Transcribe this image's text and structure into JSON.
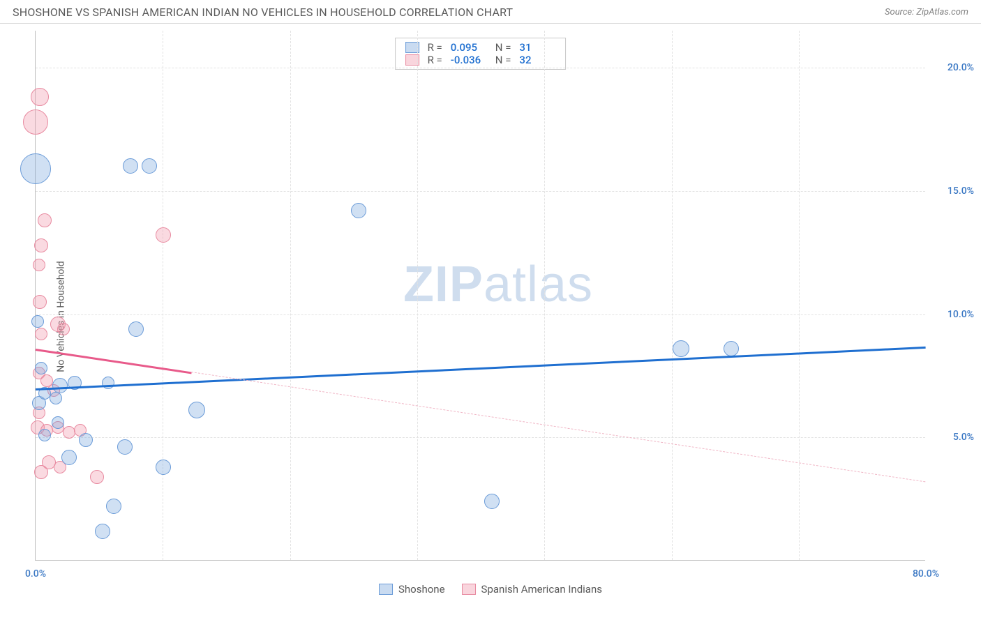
{
  "header": {
    "title": "SHOSHONE VS SPANISH AMERICAN INDIAN NO VEHICLES IN HOUSEHOLD CORRELATION CHART",
    "source": "Source: ZipAtlas.com"
  },
  "ylabel": "No Vehicles in Household",
  "watermark": {
    "bold": "ZIP",
    "rest": "atlas"
  },
  "axes": {
    "xlim": [
      0,
      80
    ],
    "ylim": [
      0,
      21.5
    ],
    "yTicks": [
      {
        "v": 5,
        "label": "5.0%"
      },
      {
        "v": 10,
        "label": "10.0%"
      },
      {
        "v": 15,
        "label": "15.0%"
      },
      {
        "v": 20,
        "label": "20.0%"
      }
    ],
    "xTicks": [
      {
        "v": 0,
        "label": "0.0%"
      },
      {
        "v": 80,
        "label": "80.0%"
      }
    ],
    "xGridStep": 11.43,
    "ytick_color": "#3b78c4",
    "xtick_color": "#3b78c4"
  },
  "series": {
    "blue": {
      "name": "Shoshone",
      "color_fill": "rgba(120,165,220,0.35)",
      "color_stroke": "#6a9bd8",
      "R": "0.095",
      "N": "31",
      "trend": {
        "x1": 0,
        "y1": 7.0,
        "x2": 80,
        "y2": 8.7,
        "solid_until_x": 80
      },
      "points": [
        {
          "x": 0.0,
          "y": 15.9,
          "r": 22
        },
        {
          "x": 8.5,
          "y": 16.0,
          "r": 11
        },
        {
          "x": 10.2,
          "y": 16.0,
          "r": 11
        },
        {
          "x": 29.0,
          "y": 14.2,
          "r": 11
        },
        {
          "x": 58.0,
          "y": 8.6,
          "r": 12
        },
        {
          "x": 62.5,
          "y": 8.6,
          "r": 11
        },
        {
          "x": 41.0,
          "y": 2.4,
          "r": 11
        },
        {
          "x": 14.5,
          "y": 6.1,
          "r": 12
        },
        {
          "x": 9.0,
          "y": 9.4,
          "r": 11
        },
        {
          "x": 11.5,
          "y": 3.8,
          "r": 11
        },
        {
          "x": 7.0,
          "y": 2.2,
          "r": 11
        },
        {
          "x": 8.0,
          "y": 4.6,
          "r": 11
        },
        {
          "x": 6.0,
          "y": 1.2,
          "r": 11
        },
        {
          "x": 3.0,
          "y": 4.2,
          "r": 11
        },
        {
          "x": 4.5,
          "y": 4.9,
          "r": 10
        },
        {
          "x": 2.2,
          "y": 7.1,
          "r": 11
        },
        {
          "x": 3.5,
          "y": 7.2,
          "r": 10
        },
        {
          "x": 0.3,
          "y": 6.4,
          "r": 10
        },
        {
          "x": 1.8,
          "y": 6.6,
          "r": 9
        },
        {
          "x": 0.8,
          "y": 6.8,
          "r": 9
        },
        {
          "x": 2.0,
          "y": 5.6,
          "r": 9
        },
        {
          "x": 0.8,
          "y": 5.1,
          "r": 9
        },
        {
          "x": 0.5,
          "y": 7.8,
          "r": 9
        },
        {
          "x": 0.2,
          "y": 9.7,
          "r": 9
        },
        {
          "x": 6.5,
          "y": 7.2,
          "r": 9
        }
      ]
    },
    "pink": {
      "name": "Spanish American Indians",
      "color_fill": "rgba(240,150,170,0.35)",
      "color_stroke": "#e88aa0",
      "R": "-0.036",
      "N": "32",
      "trend": {
        "x1": 0,
        "y1": 8.6,
        "x2": 80,
        "y2": 3.2,
        "solid_until_x": 14
      },
      "points": [
        {
          "x": 0.4,
          "y": 18.8,
          "r": 13
        },
        {
          "x": 0.0,
          "y": 17.8,
          "r": 18
        },
        {
          "x": 11.5,
          "y": 13.2,
          "r": 11
        },
        {
          "x": 0.8,
          "y": 13.8,
          "r": 10
        },
        {
          "x": 0.5,
          "y": 12.8,
          "r": 10
        },
        {
          "x": 0.3,
          "y": 12.0,
          "r": 9
        },
        {
          "x": 0.4,
          "y": 10.5,
          "r": 10
        },
        {
          "x": 2.0,
          "y": 9.6,
          "r": 11
        },
        {
          "x": 0.5,
          "y": 9.2,
          "r": 9
        },
        {
          "x": 2.5,
          "y": 9.4,
          "r": 9
        },
        {
          "x": 0.3,
          "y": 7.6,
          "r": 9
        },
        {
          "x": 1.0,
          "y": 7.3,
          "r": 9
        },
        {
          "x": 1.6,
          "y": 6.9,
          "r": 9
        },
        {
          "x": 0.3,
          "y": 6.0,
          "r": 9
        },
        {
          "x": 0.2,
          "y": 5.4,
          "r": 10
        },
        {
          "x": 1.0,
          "y": 5.3,
          "r": 9
        },
        {
          "x": 2.0,
          "y": 5.4,
          "r": 9
        },
        {
          "x": 3.0,
          "y": 5.2,
          "r": 9
        },
        {
          "x": 4.0,
          "y": 5.3,
          "r": 9
        },
        {
          "x": 1.2,
          "y": 4.0,
          "r": 10
        },
        {
          "x": 2.2,
          "y": 3.8,
          "r": 9
        },
        {
          "x": 0.5,
          "y": 3.6,
          "r": 10
        },
        {
          "x": 5.5,
          "y": 3.4,
          "r": 10
        }
      ]
    }
  },
  "legend_bottom": [
    {
      "color": "blue",
      "label": "Shoshone"
    },
    {
      "color": "pink",
      "label": "Spanish American Indians"
    }
  ]
}
